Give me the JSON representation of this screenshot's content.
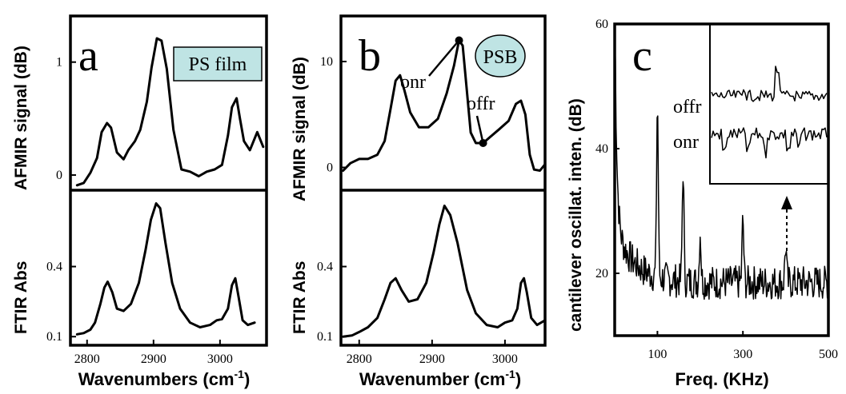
{
  "chart_data": [
    {
      "panel": "a",
      "type": "line",
      "box_label": "PS film",
      "xlabel": "Wavenumbers (cm-1)",
      "xlim": [
        2775,
        3070
      ],
      "x_ticks": [
        2800,
        2900,
        3000
      ],
      "x_tick_labels": [
        "2800",
        "2900",
        "3000"
      ],
      "subplots": [
        {
          "ylabel": "AFMIR signal (dB)",
          "ylim": [
            -0.12,
            1.38
          ],
          "y_ticks": [
            0,
            1
          ],
          "y_tick_labels": [
            "0",
            "1"
          ],
          "series": [
            {
              "x": [
                2785,
                2795,
                2805,
                2815,
                2822,
                2830,
                2836,
                2845,
                2855,
                2862,
                2872,
                2880,
                2890,
                2897,
                2905,
                2912,
                2920,
                2930,
                2942,
                2955,
                2968,
                2980,
                2992,
                3003,
                3012,
                3018,
                3025,
                3030,
                3036,
                3045,
                3056,
                3065
              ],
              "y": [
                -0.09,
                -0.07,
                0.02,
                0.15,
                0.38,
                0.46,
                0.42,
                0.2,
                0.14,
                0.22,
                0.3,
                0.4,
                0.65,
                0.95,
                1.21,
                1.19,
                0.94,
                0.4,
                0.05,
                0.03,
                -0.01,
                0.03,
                0.05,
                0.09,
                0.35,
                0.6,
                0.68,
                0.5,
                0.3,
                0.22,
                0.38,
                0.25
              ]
            }
          ]
        },
        {
          "ylabel": "FTIR Abs",
          "ylim": [
            0.07,
            0.72
          ],
          "y_ticks": [
            0.1,
            0.4
          ],
          "y_tick_labels": [
            "0.1",
            "0.4"
          ],
          "series": [
            {
              "x": [
                2785,
                2795,
                2805,
                2812,
                2820,
                2826,
                2831,
                2838,
                2845,
                2855,
                2866,
                2878,
                2888,
                2896,
                2904,
                2910,
                2918,
                2928,
                2940,
                2955,
                2970,
                2985,
                2995,
                3003,
                3012,
                3018,
                3023,
                3028,
                3034,
                3042,
                3052
              ],
              "y": [
                0.11,
                0.115,
                0.13,
                0.16,
                0.24,
                0.31,
                0.335,
                0.29,
                0.22,
                0.21,
                0.24,
                0.33,
                0.47,
                0.6,
                0.67,
                0.65,
                0.5,
                0.33,
                0.22,
                0.16,
                0.14,
                0.15,
                0.17,
                0.175,
                0.22,
                0.32,
                0.35,
                0.27,
                0.17,
                0.15,
                0.16
              ]
            }
          ]
        }
      ]
    },
    {
      "panel": "b",
      "type": "line",
      "box_label": "PSB",
      "xlabel": "Wavenumber (cm-1)",
      "xlim": [
        2775,
        3055
      ],
      "x_ticks": [
        2800,
        2900,
        3000
      ],
      "x_tick_labels": [
        "2800",
        "2900",
        "3000"
      ],
      "annotations": [
        {
          "text": "onr",
          "x": 2937,
          "y": 12.0
        },
        {
          "text": "offr",
          "x": 2970,
          "y": 2.3
        }
      ],
      "subplots": [
        {
          "ylabel": "AFMIR signal (dB)",
          "ylim": [
            -2.0,
            14.0
          ],
          "y_ticks": [
            0,
            10
          ],
          "y_tick_labels": [
            "0",
            "10"
          ],
          "series": [
            {
              "x": [
                2778,
                2788,
                2800,
                2812,
                2825,
                2835,
                2843,
                2850,
                2856,
                2862,
                2870,
                2882,
                2895,
                2908,
                2920,
                2930,
                2937,
                2942,
                2948,
                2953,
                2960,
                2970,
                2980,
                2992,
                3005,
                3015,
                3022,
                3028,
                3034,
                3040,
                3048,
                3055
              ],
              "y": [
                -0.3,
                0.4,
                0.8,
                0.8,
                1.2,
                2.5,
                5.5,
                8.2,
                8.7,
                7.3,
                5.2,
                3.8,
                3.8,
                4.6,
                7.0,
                9.6,
                12.0,
                11.5,
                7.0,
                3.3,
                2.3,
                2.3,
                2.9,
                3.6,
                4.4,
                6.0,
                6.3,
                5.0,
                1.2,
                -0.2,
                -0.3,
                0.3
              ]
            }
          ]
        },
        {
          "ylabel": "FTIR Abs",
          "ylim": [
            0.07,
            0.72
          ],
          "y_ticks": [
            0.1,
            0.4
          ],
          "y_tick_labels": [
            "0.1",
            "0.4"
          ],
          "series": [
            {
              "x": [
                2778,
                2790,
                2800,
                2812,
                2825,
                2835,
                2843,
                2850,
                2858,
                2868,
                2880,
                2892,
                2902,
                2910,
                2917,
                2925,
                2935,
                2948,
                2960,
                2975,
                2990,
                3000,
                3010,
                3017,
                3022,
                3026,
                3030,
                3036,
                3044,
                3055
              ],
              "y": [
                0.1,
                0.105,
                0.12,
                0.14,
                0.18,
                0.26,
                0.33,
                0.35,
                0.3,
                0.25,
                0.26,
                0.33,
                0.46,
                0.58,
                0.66,
                0.62,
                0.5,
                0.3,
                0.2,
                0.15,
                0.14,
                0.16,
                0.17,
                0.22,
                0.33,
                0.35,
                0.29,
                0.18,
                0.15,
                0.17
              ]
            }
          ]
        }
      ]
    },
    {
      "panel": "c",
      "type": "line",
      "xlabel": "Freq. (KHz)",
      "ylabel": "cantilever oscillat. inten. (dB)",
      "xlim": [
        0,
        500
      ],
      "ylim": [
        10,
        60
      ],
      "x_ticks": [
        100,
        300,
        500
      ],
      "x_tick_labels": [
        "100",
        "300",
        "500"
      ],
      "y_ticks": [
        20,
        40,
        60
      ],
      "y_tick_labels": [
        "20",
        "40",
        "60"
      ],
      "peaks": [
        [
          100,
          48
        ],
        [
          160,
          38
        ],
        [
          200,
          28
        ],
        [
          300,
          30
        ],
        [
          400,
          26
        ]
      ],
      "inset_labels": [
        "offr",
        "onr"
      ]
    }
  ],
  "labels": {
    "a": {
      "letter": "a",
      "box": "PS film",
      "ylabel_top": "AFMIR signal (dB)",
      "ylabel_bottom": "FTIR Abs",
      "xlabel_main": "Wavenumbers (cm",
      "xlabel_sup": "-1",
      "xlabel_end": ")"
    },
    "b": {
      "letter": "b",
      "box": "PSB",
      "ylabel_top": "AFMIR signal (dB)",
      "ylabel_bottom": "FTIR Abs",
      "xlabel_main": "Wavenumber (cm",
      "xlabel_sup": "-1",
      "xlabel_end": ")",
      "onr": "onr",
      "offr": "offr"
    },
    "c": {
      "letter": "c",
      "ylabel": "cantilever oscillat. inten. (dB)",
      "xlabel": "Freq. (KHz)",
      "offr": "offr",
      "onr": "onr"
    }
  }
}
